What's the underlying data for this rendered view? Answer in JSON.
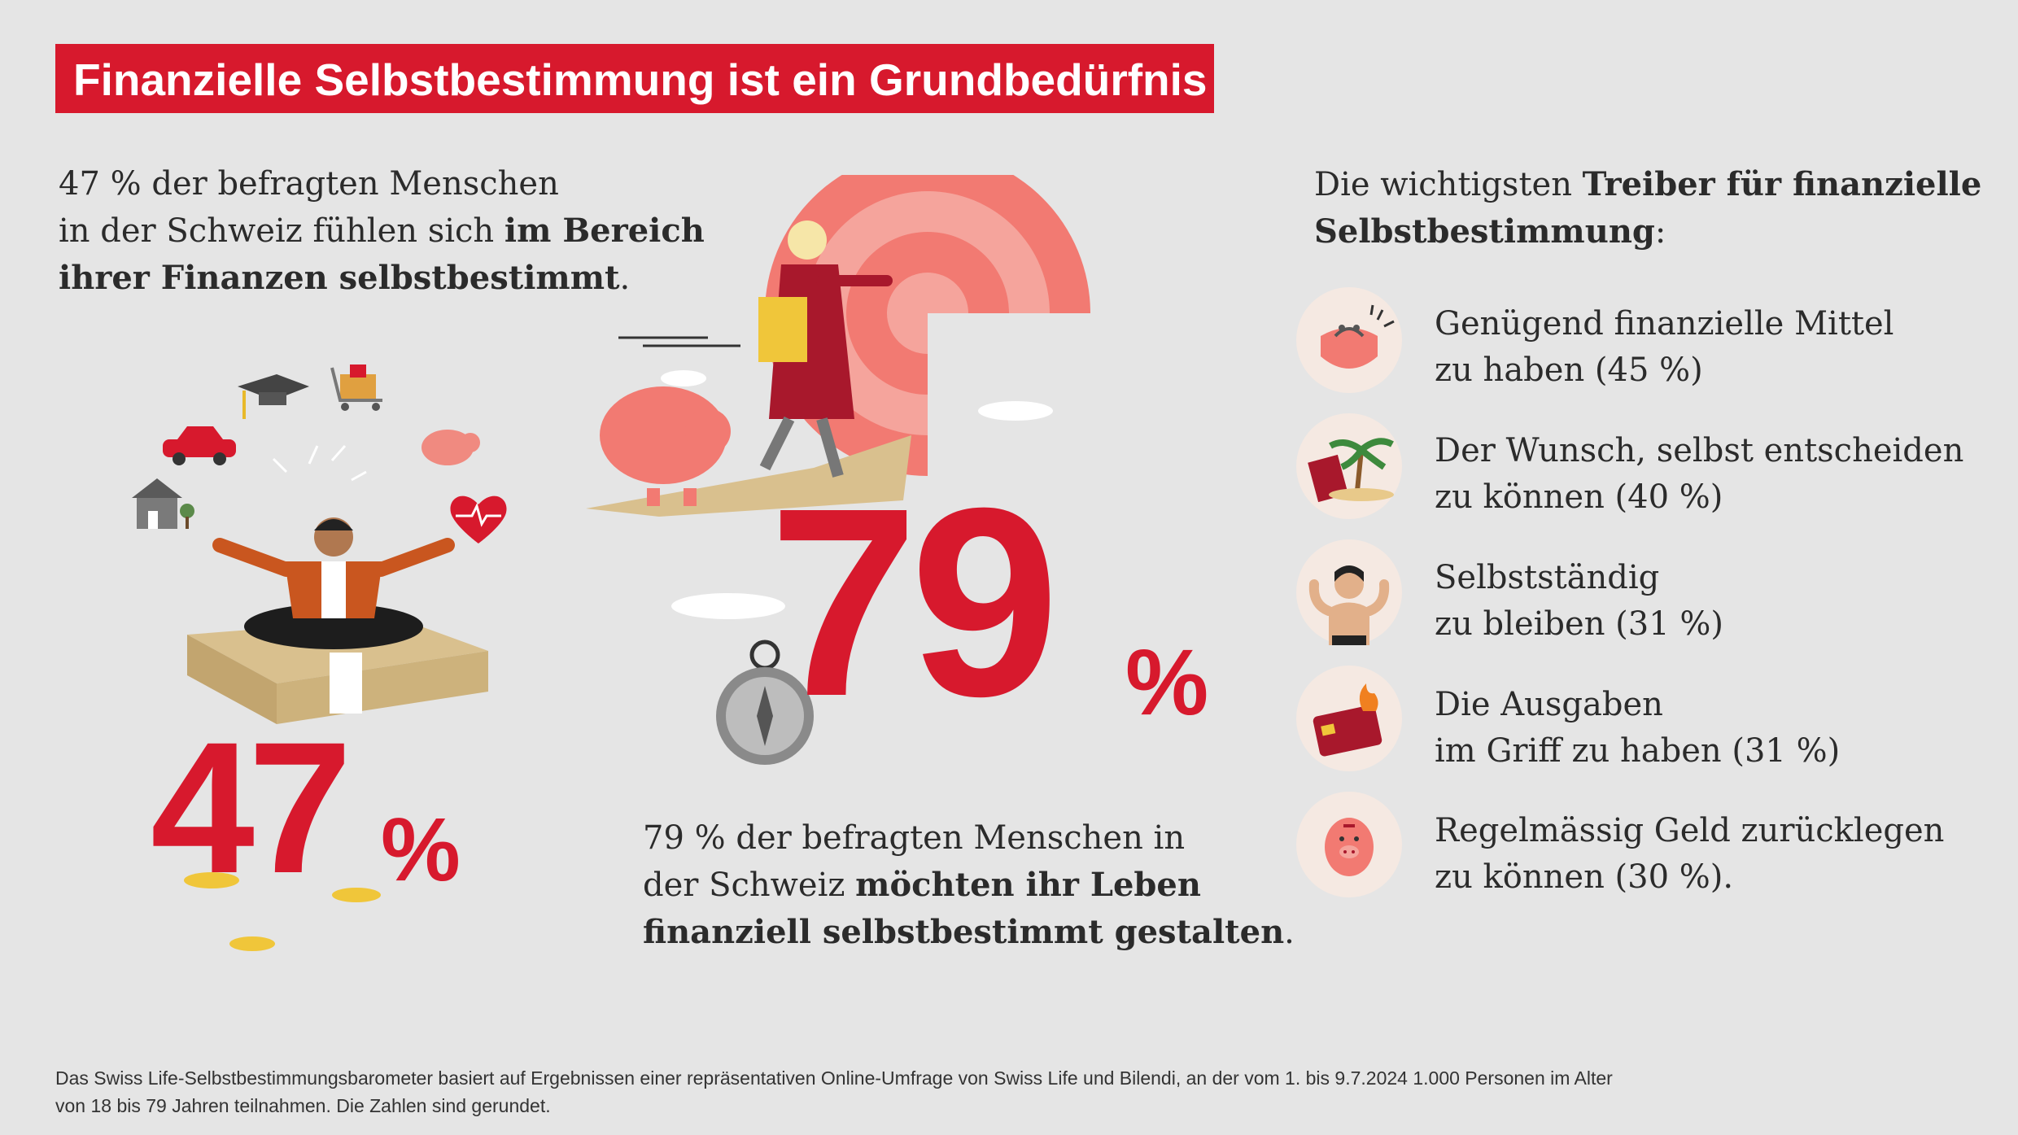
{
  "title": "Finanzielle Selbstbestimmung ist ein Grundbedürfnis",
  "left": {
    "line1": "47 % der befragten Menschen",
    "line2_normal": "in der Schweiz fühlen sich ",
    "line2_bold": "im Bereich",
    "line3_bold": "ihrer Finanzen selbstbestimmt",
    "line3_end": ".",
    "big_number": "47",
    "percent": "%"
  },
  "middle": {
    "big_number": "79",
    "percent": "%",
    "line1": "79 % der befragten Menschen in",
    "line2_normal": "der Schweiz ",
    "line2_bold": "möchten ihr Leben",
    "line3_bold": "finanziell selbstbestimmt gestalten",
    "line3_end": "."
  },
  "drivers": {
    "heading_normal": "Die wichtigsten ",
    "heading_bold1": "Treiber für finanzielle",
    "heading_bold2": "Selbstbestimmung",
    "heading_end": ":",
    "items": [
      {
        "line1": "Genügend finanzielle Mittel",
        "line2": "zu haben (45 %)",
        "icon": "purse-icon"
      },
      {
        "line1": "Der Wunsch, selbst entscheiden",
        "line2": "zu können (40 %)",
        "icon": "palm-passport-icon"
      },
      {
        "line1": "Selbstständig",
        "line2": "zu bleiben (31 %)",
        "icon": "strong-person-icon"
      },
      {
        "line1": "Die Ausgaben",
        "line2": "im Griff zu haben (31 %)",
        "icon": "burning-card-icon"
      },
      {
        "line1": "Regelmässig Geld zurücklegen",
        "line2": "zu können (30 %).",
        "icon": "piggy-bank-icon"
      }
    ]
  },
  "footnote": {
    "line1": "Das Swiss Life-Selbstbestimmungsbarometer basiert auf Ergebnissen einer repräsentativen Online-Umfrage von Swiss Life und Bilendi, an der vom 1. bis 9.7.2024 1.000 Personen im Alter",
    "line2": "von 18 bis 79 Jahren teilnahmen. Die Zahlen sind gerundet."
  },
  "colors": {
    "accent": "#d7192d",
    "background": "#e5e5e5",
    "coral": "#f27a72",
    "money": "#d9c08e"
  }
}
